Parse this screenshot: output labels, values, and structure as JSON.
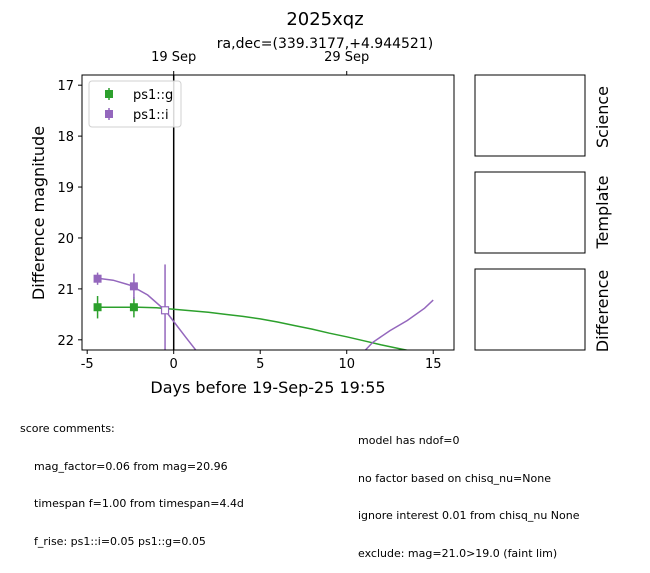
{
  "title": "2025xqz",
  "subtitle": "ra,dec=(339.3177,+4.944521)",
  "chart_data": {
    "type": "scatter",
    "xlabel": "Days before 19-Sep-25 19:55",
    "ylabel": "Difference magnitude",
    "xlim": [
      -5.3,
      16.2
    ],
    "ylim": [
      22.2,
      16.8
    ],
    "y_inverted": true,
    "x_ticks": [
      -5,
      0,
      5,
      10,
      15
    ],
    "y_ticks": [
      17,
      18,
      19,
      20,
      21,
      22
    ],
    "top_axis_ticks": [
      {
        "label": "19 Sep",
        "x": 0
      },
      {
        "label": "29 Sep",
        "x": 10
      }
    ],
    "vline_x": 0,
    "grid": false,
    "legend_position": "upper-left",
    "series": [
      {
        "name": "ps1::g",
        "color": "#2ca02c",
        "points": [
          {
            "x": -4.4,
            "y": 21.36,
            "err": 0.22
          },
          {
            "x": -2.3,
            "y": 21.36,
            "err": 0.2
          }
        ],
        "model_curve": [
          [
            -4.4,
            21.36
          ],
          [
            -3.0,
            21.36
          ],
          [
            -2.0,
            21.36
          ],
          [
            -1.0,
            21.37
          ],
          [
            0.0,
            21.4
          ],
          [
            1.0,
            21.43
          ],
          [
            2.0,
            21.46
          ],
          [
            3.0,
            21.5
          ],
          [
            4.0,
            21.54
          ],
          [
            5.0,
            21.59
          ],
          [
            6.0,
            21.65
          ],
          [
            7.0,
            21.72
          ],
          [
            8.0,
            21.79
          ],
          [
            9.0,
            21.87
          ],
          [
            10.0,
            21.94
          ],
          [
            11.0,
            22.02
          ],
          [
            12.0,
            22.1
          ],
          [
            13.0,
            22.17
          ],
          [
            14.0,
            22.24
          ]
        ]
      },
      {
        "name": "ps1::i",
        "color": "#9467bd",
        "points": [
          {
            "x": -4.4,
            "y": 20.8,
            "err": 0.12
          },
          {
            "x": -2.3,
            "y": 20.95,
            "err": 0.25
          }
        ],
        "open_points": [
          {
            "x": -0.5,
            "y": 21.42,
            "err": 0.9
          }
        ],
        "model_curve_left": [
          [
            -4.4,
            20.79
          ],
          [
            -3.5,
            20.83
          ],
          [
            -2.5,
            20.93
          ],
          [
            -1.5,
            21.12
          ],
          [
            -0.5,
            21.42
          ],
          [
            0.0,
            21.64
          ],
          [
            0.7,
            21.95
          ],
          [
            1.5,
            22.3
          ]
        ],
        "model_curve_right": [
          [
            10.8,
            22.3
          ],
          [
            11.5,
            22.05
          ],
          [
            12.5,
            21.82
          ],
          [
            13.5,
            21.62
          ],
          [
            14.5,
            21.38
          ],
          [
            15.0,
            21.22
          ]
        ]
      }
    ]
  },
  "panels": [
    {
      "label": "Science"
    },
    {
      "label": "Template"
    },
    {
      "label": "Difference"
    }
  ],
  "comments_left": {
    "heading": "score comments:",
    "lines": [
      "mag_factor=0.06 from mag=20.96",
      "timespan f=1.00 from timespan=4.4d",
      "f_rise: ps1::i=0.05 ps1::g=0.05"
    ]
  },
  "comments_right": {
    "lines": [
      "model has ndof=0",
      "no factor based on chisq_nu=None",
      "ignore interest 0.01 from chisq_nu None",
      "exclude: mag=21.0>19.0 (faint lim)"
    ]
  }
}
